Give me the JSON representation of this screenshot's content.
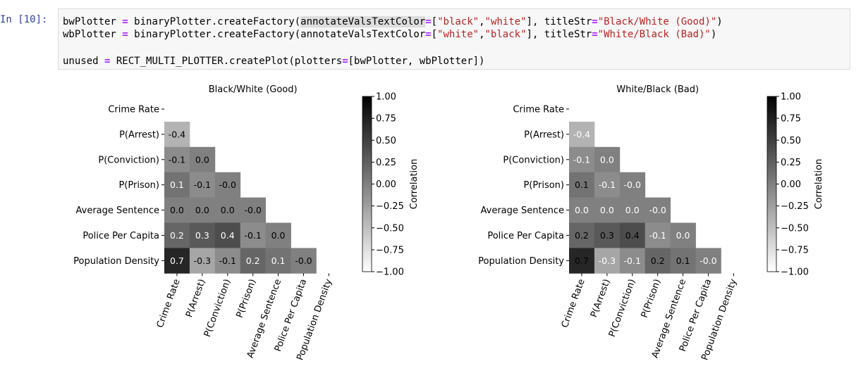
{
  "cell": {
    "prompt": "In [10]:",
    "lines": [
      [
        {
          "t": "bwPlotter ",
          "c": "plain"
        },
        {
          "t": "=",
          "c": "op"
        },
        {
          "t": " binaryPlotter.createFactory(",
          "c": "plain"
        },
        {
          "t": "annotateValsTextColor",
          "c": "hl"
        },
        {
          "t": "=",
          "c": "op"
        },
        {
          "t": "[",
          "c": "plain"
        },
        {
          "t": "\"black\"",
          "c": "str"
        },
        {
          "t": ",",
          "c": "plain"
        },
        {
          "t": "\"white\"",
          "c": "str"
        },
        {
          "t": "], titleStr",
          "c": "plain"
        },
        {
          "t": "=",
          "c": "op"
        },
        {
          "t": "\"Black/White (Good)\"",
          "c": "str"
        },
        {
          "t": ")",
          "c": "plain"
        }
      ],
      [
        {
          "t": "wbPlotter ",
          "c": "plain"
        },
        {
          "t": "=",
          "c": "op"
        },
        {
          "t": " binaryPlotter.createFactory(annotateValsTextColor",
          "c": "plain"
        },
        {
          "t": "=",
          "c": "op"
        },
        {
          "t": "[",
          "c": "plain"
        },
        {
          "t": "\"white\"",
          "c": "str"
        },
        {
          "t": ",",
          "c": "plain"
        },
        {
          "t": "\"black\"",
          "c": "str"
        },
        {
          "t": "], titleStr",
          "c": "plain"
        },
        {
          "t": "=",
          "c": "op"
        },
        {
          "t": "\"White/Black (Bad)\"",
          "c": "str"
        },
        {
          "t": ")",
          "c": "plain"
        }
      ],
      [],
      [
        {
          "t": "unused ",
          "c": "plain"
        },
        {
          "t": "=",
          "c": "op"
        },
        {
          "t": " RECT_MULTI_PLOTTER.createPlot(plotters",
          "c": "plain"
        },
        {
          "t": "=",
          "c": "op"
        },
        {
          "t": "[bwPlotter, wbPlotter])",
          "c": "plain"
        }
      ]
    ]
  },
  "chart_data": [
    {
      "type": "heatmap",
      "title": "Black/White (Good)",
      "labels": [
        "Crime Rate",
        "P(Arrest)",
        "P(Conviction)",
        "P(Prison)",
        "Average Sentence",
        "Police Per Capita",
        "Population Density"
      ],
      "matrix": [
        [
          null,
          null,
          null,
          null,
          null,
          null,
          null
        ],
        [
          -0.4,
          null,
          null,
          null,
          null,
          null,
          null
        ],
        [
          -0.1,
          0.0,
          null,
          null,
          null,
          null,
          null
        ],
        [
          0.1,
          -0.1,
          -0.0,
          null,
          null,
          null,
          null
        ],
        [
          0.0,
          0.0,
          0.0,
          -0.0,
          null,
          null,
          null
        ],
        [
          0.2,
          0.3,
          0.4,
          -0.1,
          0.0,
          null,
          null
        ],
        [
          0.7,
          -0.3,
          -0.1,
          0.2,
          0.1,
          -0.0,
          null
        ]
      ],
      "annotations": [
        [
          null,
          null,
          null,
          null,
          null,
          null,
          null
        ],
        [
          "-0.4",
          null,
          null,
          null,
          null,
          null,
          null
        ],
        [
          "-0.1",
          "0.0",
          null,
          null,
          null,
          null,
          null
        ],
        [
          "0.1",
          "-0.1",
          "-0.0",
          null,
          null,
          null,
          null
        ],
        [
          "0.0",
          "0.0",
          "0.0",
          "-0.0",
          null,
          null,
          null
        ],
        [
          "0.2",
          "0.3",
          "0.4",
          "-0.1",
          "0.0",
          null,
          null
        ],
        [
          "0.7",
          "-0.3",
          "-0.1",
          "0.2",
          "0.1",
          "-0.0",
          null
        ]
      ],
      "annotation_colors": [
        "black",
        "white"
      ],
      "colorbar": {
        "label": "Correlation",
        "ticks": [
          "1.00",
          "0.75",
          "0.50",
          "0.25",
          "0.00",
          "−0.25",
          "−0.50",
          "−0.75",
          "−1.00"
        ],
        "range": [
          -1,
          1
        ]
      }
    },
    {
      "type": "heatmap",
      "title": "White/Black (Bad)",
      "labels": [
        "Crime Rate",
        "P(Arrest)",
        "P(Conviction)",
        "P(Prison)",
        "Average Sentence",
        "Police Per Capita",
        "Population Density"
      ],
      "matrix": [
        [
          null,
          null,
          null,
          null,
          null,
          null,
          null
        ],
        [
          -0.4,
          null,
          null,
          null,
          null,
          null,
          null
        ],
        [
          -0.1,
          0.0,
          null,
          null,
          null,
          null,
          null
        ],
        [
          0.1,
          -0.1,
          -0.0,
          null,
          null,
          null,
          null
        ],
        [
          0.0,
          0.0,
          0.0,
          -0.0,
          null,
          null,
          null
        ],
        [
          0.2,
          0.3,
          0.4,
          -0.1,
          0.0,
          null,
          null
        ],
        [
          0.7,
          -0.3,
          -0.1,
          0.2,
          0.1,
          -0.0,
          null
        ]
      ],
      "annotations": [
        [
          null,
          null,
          null,
          null,
          null,
          null,
          null
        ],
        [
          "-0.4",
          null,
          null,
          null,
          null,
          null,
          null
        ],
        [
          "-0.1",
          "0.0",
          null,
          null,
          null,
          null,
          null
        ],
        [
          "0.1",
          "-0.1",
          "-0.0",
          null,
          null,
          null,
          null
        ],
        [
          "0.0",
          "0.0",
          "0.0",
          "-0.0",
          null,
          null,
          null
        ],
        [
          "0.2",
          "0.3",
          "0.4",
          "-0.1",
          "0.0",
          null,
          null
        ],
        [
          "0.7",
          "-0.3",
          "-0.1",
          "0.2",
          "0.1",
          "-0.0",
          null
        ]
      ],
      "annotation_colors": [
        "white",
        "black"
      ],
      "colorbar": {
        "label": "Correlation",
        "ticks": [
          "1.00",
          "0.75",
          "0.50",
          "0.25",
          "0.00",
          "−0.25",
          "−0.50",
          "−0.75",
          "−1.00"
        ],
        "range": [
          -1,
          1
        ]
      }
    }
  ]
}
